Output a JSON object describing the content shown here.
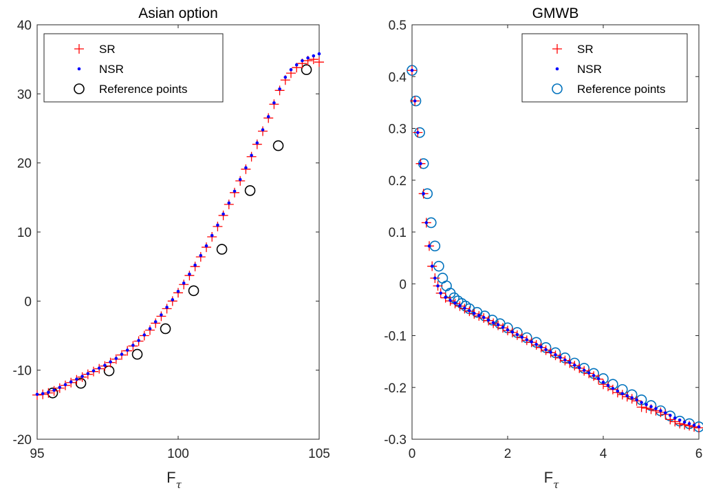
{
  "chart_data": [
    {
      "type": "scatter",
      "title": "Asian option",
      "xlabel": "F",
      "xlabel_sub": "τ",
      "ylabel": "",
      "xlim": [
        95,
        105
      ],
      "ylim": [
        -20,
        40
      ],
      "xticks": [
        "95",
        "100",
        "105"
      ],
      "yticks": [
        "-20",
        "-10",
        "0",
        "10",
        "20",
        "30",
        "40"
      ],
      "grid": false,
      "legend_position": "top-left",
      "legend": [
        "SR",
        "NSR",
        "Reference points"
      ],
      "colors": {
        "SR": "#ff0000",
        "NSR": "#0000ff",
        "Reference points": "#000000"
      },
      "series": [
        {
          "name": "SR",
          "marker": "plus",
          "x": [
            95.0,
            95.2,
            95.4,
            95.6,
            95.8,
            96.0,
            96.2,
            96.4,
            96.6,
            96.8,
            97.0,
            97.2,
            97.4,
            97.6,
            97.8,
            98.0,
            98.2,
            98.4,
            98.6,
            98.8,
            99.0,
            99.2,
            99.4,
            99.6,
            99.8,
            100.0,
            100.2,
            100.4,
            100.6,
            100.8,
            101.0,
            101.2,
            101.4,
            101.6,
            101.8,
            102.0,
            102.2,
            102.4,
            102.6,
            102.8,
            103.0,
            103.2,
            103.4,
            103.6,
            103.8,
            104.0,
            104.2,
            104.4,
            104.6,
            104.8,
            105.0
          ],
          "y": [
            -13.6,
            -13.5,
            -13.3,
            -13.0,
            -12.6,
            -12.2,
            -11.8,
            -11.4,
            -11.0,
            -10.6,
            -10.2,
            -9.8,
            -9.4,
            -8.9,
            -8.4,
            -7.8,
            -7.2,
            -6.5,
            -5.8,
            -5.0,
            -4.2,
            -3.2,
            -2.2,
            -1.1,
            0.0,
            1.2,
            2.4,
            3.7,
            5.0,
            6.4,
            7.8,
            9.3,
            10.8,
            12.4,
            14.0,
            15.7,
            17.4,
            19.1,
            20.9,
            22.7,
            24.6,
            26.5,
            28.5,
            30.5,
            32.0,
            33.0,
            33.8,
            34.4,
            34.8,
            35.0,
            34.6
          ]
        },
        {
          "name": "NSR",
          "marker": "dot",
          "x": [
            95.0,
            95.2,
            95.4,
            95.6,
            95.8,
            96.0,
            96.2,
            96.4,
            96.6,
            96.8,
            97.0,
            97.2,
            97.4,
            97.6,
            97.8,
            98.0,
            98.2,
            98.4,
            98.6,
            98.8,
            99.0,
            99.2,
            99.4,
            99.6,
            99.8,
            100.0,
            100.2,
            100.4,
            100.6,
            100.8,
            101.0,
            101.2,
            101.4,
            101.6,
            101.8,
            102.0,
            102.2,
            102.4,
            102.6,
            102.8,
            103.0,
            103.2,
            103.4,
            103.6,
            103.8,
            104.0,
            104.2,
            104.4,
            104.6,
            104.8,
            105.0
          ],
          "y": [
            -13.5,
            -13.4,
            -13.2,
            -12.9,
            -12.5,
            -12.1,
            -11.7,
            -11.3,
            -10.9,
            -10.5,
            -10.1,
            -9.7,
            -9.3,
            -8.8,
            -8.3,
            -7.7,
            -7.1,
            -6.4,
            -5.7,
            -4.9,
            -4.0,
            -3.0,
            -2.0,
            -0.9,
            0.2,
            1.4,
            2.6,
            3.9,
            5.2,
            6.6,
            8.0,
            9.5,
            11.0,
            12.6,
            14.2,
            15.9,
            17.6,
            19.3,
            21.1,
            22.9,
            24.8,
            26.7,
            28.7,
            30.7,
            32.4,
            33.5,
            34.2,
            34.8,
            35.2,
            35.5,
            35.8
          ]
        },
        {
          "name": "Reference points",
          "marker": "circle",
          "x": [
            95.55,
            96.55,
            97.55,
            98.55,
            99.55,
            100.55,
            101.55,
            102.55,
            103.55,
            104.55
          ],
          "y": [
            -13.3,
            -11.9,
            -10.1,
            -7.7,
            -4.0,
            1.5,
            7.5,
            16.0,
            22.5,
            33.5
          ]
        }
      ]
    },
    {
      "type": "scatter",
      "title": "GMWB",
      "xlabel": "F",
      "xlabel_sub": "τ",
      "ylabel": "",
      "xlim": [
        0,
        6
      ],
      "ylim": [
        -0.3,
        0.5
      ],
      "xticks": [
        "0",
        "2",
        "4",
        "6"
      ],
      "yticks": [
        "-0.3",
        "-0.2",
        "-0.1",
        "0",
        "0.1",
        "0.2",
        "0.3",
        "0.4",
        "0.5"
      ],
      "grid": false,
      "legend_position": "top-right",
      "legend": [
        "SR",
        "NSR",
        "Reference points"
      ],
      "colors": {
        "SR": "#ff0000",
        "NSR": "#0000ff",
        "Reference points": "#0072bd"
      },
      "series": [
        {
          "name": "SR",
          "marker": "plus",
          "x": [
            0.0,
            0.06,
            0.12,
            0.18,
            0.24,
            0.3,
            0.36,
            0.42,
            0.48,
            0.54,
            0.6,
            0.7,
            0.8,
            0.9,
            1.0,
            1.1,
            1.2,
            1.3,
            1.4,
            1.5,
            1.6,
            1.7,
            1.8,
            1.9,
            2.0,
            2.1,
            2.2,
            2.3,
            2.4,
            2.5,
            2.6,
            2.7,
            2.8,
            2.9,
            3.0,
            3.1,
            3.2,
            3.3,
            3.4,
            3.5,
            3.6,
            3.7,
            3.8,
            3.9,
            4.0,
            4.1,
            4.2,
            4.3,
            4.4,
            4.5,
            4.6,
            4.7,
            4.8,
            4.9,
            5.0,
            5.1,
            5.2,
            5.3,
            5.4,
            5.5,
            5.6,
            5.7,
            5.8,
            5.9,
            6.0
          ],
          "y": [
            0.412,
            0.353,
            0.292,
            0.232,
            0.174,
            0.118,
            0.073,
            0.034,
            0.011,
            -0.004,
            -0.018,
            -0.027,
            -0.033,
            -0.038,
            -0.043,
            -0.048,
            -0.053,
            -0.058,
            -0.062,
            -0.066,
            -0.071,
            -0.076,
            -0.08,
            -0.085,
            -0.09,
            -0.094,
            -0.099,
            -0.104,
            -0.109,
            -0.113,
            -0.118,
            -0.123,
            -0.128,
            -0.133,
            -0.138,
            -0.143,
            -0.148,
            -0.153,
            -0.158,
            -0.163,
            -0.168,
            -0.173,
            -0.178,
            -0.184,
            -0.194,
            -0.198,
            -0.204,
            -0.21,
            -0.214,
            -0.218,
            -0.222,
            -0.226,
            -0.238,
            -0.24,
            -0.242,
            -0.245,
            -0.248,
            -0.252,
            -0.262,
            -0.266,
            -0.27,
            -0.272,
            -0.274,
            -0.276,
            -0.278
          ]
        },
        {
          "name": "NSR",
          "marker": "dot",
          "x": [
            0.0,
            0.06,
            0.12,
            0.18,
            0.24,
            0.3,
            0.36,
            0.42,
            0.48,
            0.54,
            0.6,
            0.7,
            0.8,
            0.9,
            1.0,
            1.1,
            1.2,
            1.3,
            1.4,
            1.5,
            1.6,
            1.7,
            1.8,
            1.9,
            2.0,
            2.1,
            2.2,
            2.3,
            2.4,
            2.5,
            2.6,
            2.7,
            2.8,
            2.9,
            3.0,
            3.1,
            3.2,
            3.3,
            3.4,
            3.5,
            3.6,
            3.7,
            3.8,
            3.9,
            4.0,
            4.1,
            4.2,
            4.3,
            4.4,
            4.5,
            4.6,
            4.7,
            4.8,
            4.9,
            5.0,
            5.1,
            5.2,
            5.3,
            5.4,
            5.5,
            5.6,
            5.7,
            5.8,
            5.9,
            6.0
          ],
          "y": [
            0.412,
            0.353,
            0.292,
            0.232,
            0.174,
            0.118,
            0.073,
            0.034,
            0.011,
            -0.004,
            -0.018,
            -0.026,
            -0.032,
            -0.037,
            -0.042,
            -0.047,
            -0.052,
            -0.057,
            -0.061,
            -0.065,
            -0.07,
            -0.075,
            -0.079,
            -0.084,
            -0.089,
            -0.093,
            -0.098,
            -0.103,
            -0.108,
            -0.112,
            -0.117,
            -0.122,
            -0.127,
            -0.132,
            -0.137,
            -0.142,
            -0.147,
            -0.152,
            -0.157,
            -0.162,
            -0.167,
            -0.172,
            -0.177,
            -0.183,
            -0.19,
            -0.196,
            -0.202,
            -0.207,
            -0.212,
            -0.216,
            -0.22,
            -0.224,
            -0.229,
            -0.233,
            -0.237,
            -0.241,
            -0.245,
            -0.249,
            -0.254,
            -0.259,
            -0.263,
            -0.267,
            -0.27,
            -0.273,
            -0.276
          ]
        },
        {
          "name": "Reference points",
          "marker": "circle",
          "x": [
            0.0,
            0.08,
            0.16,
            0.24,
            0.32,
            0.4,
            0.48,
            0.56,
            0.64,
            0.72,
            0.8,
            0.88,
            0.96,
            1.04,
            1.12,
            1.2,
            1.36,
            1.52,
            1.68,
            1.84,
            2.0,
            2.2,
            2.4,
            2.6,
            2.8,
            3.0,
            3.2,
            3.4,
            3.6,
            3.8,
            4.0,
            4.2,
            4.4,
            4.6,
            4.8,
            5.0,
            5.2,
            5.4,
            5.6,
            5.8,
            6.0
          ],
          "y": [
            0.412,
            0.353,
            0.292,
            0.232,
            0.174,
            0.118,
            0.073,
            0.034,
            0.011,
            -0.004,
            -0.018,
            -0.027,
            -0.033,
            -0.038,
            -0.043,
            -0.048,
            -0.055,
            -0.062,
            -0.07,
            -0.077,
            -0.085,
            -0.094,
            -0.104,
            -0.113,
            -0.123,
            -0.133,
            -0.143,
            -0.153,
            -0.163,
            -0.173,
            -0.183,
            -0.194,
            -0.204,
            -0.214,
            -0.224,
            -0.235,
            -0.245,
            -0.255,
            -0.265,
            -0.27,
            -0.276
          ]
        }
      ]
    }
  ]
}
